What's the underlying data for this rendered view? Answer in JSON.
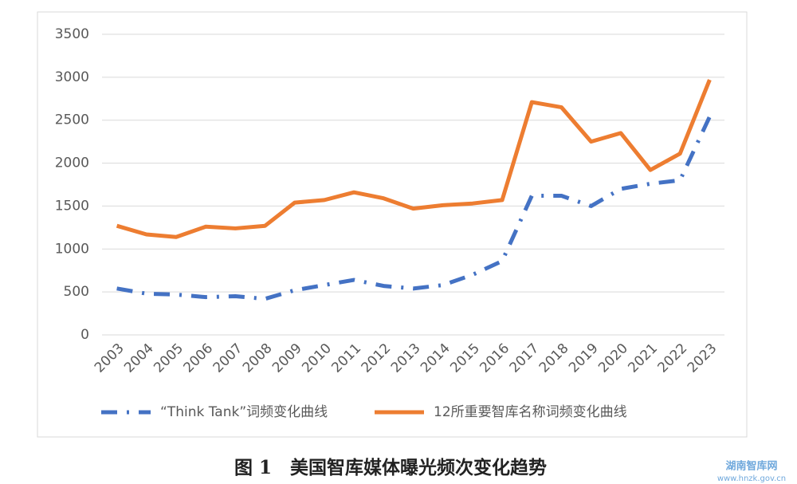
{
  "chart_data": {
    "type": "line",
    "categories": [
      "2003",
      "2004",
      "2005",
      "2006",
      "2007",
      "2008",
      "2009",
      "2010",
      "2011",
      "2012",
      "2013",
      "2014",
      "2015",
      "2016",
      "2017",
      "2018",
      "2019",
      "2020",
      "2021",
      "2022",
      "2023"
    ],
    "series": [
      {
        "name": "“Think Tank”词频变化曲线",
        "color": "#4472c4",
        "dash": "dash-dot",
        "values": [
          540,
          480,
          470,
          440,
          450,
          420,
          520,
          580,
          640,
          570,
          540,
          580,
          700,
          860,
          1620,
          1620,
          1500,
          1700,
          1760,
          1800,
          2540
        ]
      },
      {
        "name": "12所重要智库名称词频变化曲线",
        "color": "#ed7d31",
        "dash": "solid",
        "values": [
          1270,
          1170,
          1140,
          1260,
          1240,
          1270,
          1540,
          1570,
          1660,
          1590,
          1470,
          1510,
          1530,
          1570,
          2710,
          2650,
          2250,
          2350,
          1920,
          2110,
          2970
        ]
      }
    ],
    "ylim": [
      0,
      3500
    ],
    "yticks": [
      0,
      500,
      1000,
      1500,
      2000,
      2500,
      3000,
      3500
    ],
    "grid": true,
    "legend": "bottom"
  },
  "caption": "图 1　美国智库媒体曝光频次变化趋势",
  "watermark": {
    "name": "湖南智库网",
    "url": "www.hnzk.gov.cn"
  }
}
